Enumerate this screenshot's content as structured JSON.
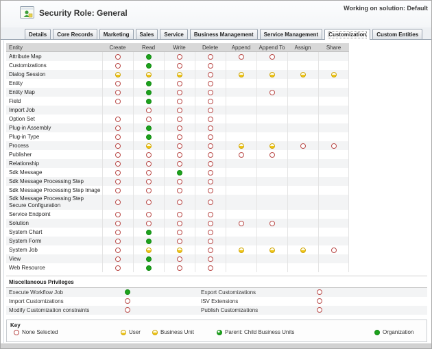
{
  "window": {
    "title": "Security Role: General",
    "working_on": "Working on solution: Default"
  },
  "tabs": [
    {
      "label": "Details",
      "selected": false
    },
    {
      "label": "Core Records",
      "selected": false
    },
    {
      "label": "Marketing",
      "selected": false
    },
    {
      "label": "Sales",
      "selected": false
    },
    {
      "label": "Service",
      "selected": false
    },
    {
      "label": "Business Management",
      "selected": false
    },
    {
      "label": "Service Management",
      "selected": false
    },
    {
      "label": "Customization",
      "selected": true
    },
    {
      "label": "Custom Entities",
      "selected": false
    }
  ],
  "grid": {
    "columns": [
      "Entity",
      "Create",
      "Read",
      "Write",
      "Delete",
      "Append",
      "Append To",
      "Assign",
      "Share"
    ],
    "rows": [
      {
        "entity": "Attribute Map",
        "cells": [
          "none",
          "org",
          "none",
          "none",
          "none",
          "none",
          "",
          ""
        ]
      },
      {
        "entity": "Customizations",
        "cells": [
          "none",
          "org",
          "none",
          "none",
          "",
          "",
          "",
          ""
        ]
      },
      {
        "entity": "Dialog Session",
        "cells": [
          "bu",
          "bu",
          "bu",
          "none",
          "bu",
          "bu",
          "bu",
          "bu"
        ]
      },
      {
        "entity": "Entity",
        "cells": [
          "none",
          "org",
          "none",
          "none",
          "",
          "",
          "",
          ""
        ]
      },
      {
        "entity": "Entity Map",
        "cells": [
          "none",
          "org",
          "none",
          "none",
          "",
          "none",
          "",
          ""
        ]
      },
      {
        "entity": "Field",
        "cells": [
          "none",
          "org",
          "none",
          "none",
          "",
          "",
          "",
          ""
        ]
      },
      {
        "entity": "Import Job",
        "cells": [
          "",
          "none",
          "none",
          "none",
          "",
          "",
          "",
          ""
        ]
      },
      {
        "entity": "Option Set",
        "cells": [
          "none",
          "none",
          "none",
          "none",
          "",
          "",
          "",
          ""
        ]
      },
      {
        "entity": "Plug-in Assembly",
        "cells": [
          "none",
          "org",
          "none",
          "none",
          "",
          "",
          "",
          ""
        ]
      },
      {
        "entity": "Plug-in Type",
        "cells": [
          "none",
          "org",
          "none",
          "none",
          "",
          "",
          "",
          ""
        ]
      },
      {
        "entity": "Process",
        "cells": [
          "none",
          "bu",
          "none",
          "none",
          "bu",
          "bu",
          "none",
          "none"
        ]
      },
      {
        "entity": "Publisher",
        "cells": [
          "none",
          "none",
          "none",
          "none",
          "none",
          "none",
          "",
          ""
        ]
      },
      {
        "entity": "Relationship",
        "cells": [
          "none",
          "none",
          "none",
          "none",
          "",
          "",
          "",
          ""
        ]
      },
      {
        "entity": "Sdk Message",
        "cells": [
          "none",
          "none",
          "org",
          "none",
          "",
          "",
          "",
          ""
        ]
      },
      {
        "entity": "Sdk Message Processing Step",
        "cells": [
          "none",
          "none",
          "none",
          "none",
          "",
          "",
          "",
          ""
        ]
      },
      {
        "entity": "Sdk Message Processing Step Image",
        "cells": [
          "none",
          "none",
          "none",
          "none",
          "",
          "",
          "",
          ""
        ]
      },
      {
        "entity": "Sdk Message Processing Step Secure Configuration",
        "cells": [
          "none",
          "none",
          "none",
          "none",
          "",
          "",
          "",
          ""
        ]
      },
      {
        "entity": "Service Endpoint",
        "cells": [
          "none",
          "none",
          "none",
          "none",
          "",
          "",
          "",
          ""
        ]
      },
      {
        "entity": "Solution",
        "cells": [
          "none",
          "none",
          "none",
          "none",
          "none",
          "none",
          "",
          ""
        ]
      },
      {
        "entity": "System Chart",
        "cells": [
          "none",
          "org",
          "none",
          "none",
          "",
          "",
          "",
          ""
        ]
      },
      {
        "entity": "System Form",
        "cells": [
          "none",
          "org",
          "none",
          "none",
          "",
          "",
          "",
          ""
        ]
      },
      {
        "entity": "System Job",
        "cells": [
          "none",
          "bu",
          "bu",
          "none",
          "bu",
          "bu",
          "bu",
          "none"
        ]
      },
      {
        "entity": "View",
        "cells": [
          "none",
          "org",
          "none",
          "none",
          "",
          "",
          "",
          ""
        ]
      },
      {
        "entity": "Web Resource",
        "cells": [
          "none",
          "org",
          "none",
          "none",
          "",
          "",
          "",
          ""
        ]
      }
    ]
  },
  "misc": {
    "title": "Miscellaneous Privileges",
    "left": [
      {
        "label": "Execute Workflow Job",
        "level": "org"
      },
      {
        "label": "Import Customizations",
        "level": "none"
      },
      {
        "label": "Modify Customization constraints",
        "level": "none"
      }
    ],
    "right": [
      {
        "label": "Export Customizations",
        "level": "none"
      },
      {
        "label": "ISV Extensions",
        "level": "none"
      },
      {
        "label": "Publish Customizations",
        "level": "none"
      }
    ]
  },
  "key": {
    "title": "Key",
    "items": [
      {
        "label": "None Selected",
        "level": "none"
      },
      {
        "label": "User",
        "level": "user"
      },
      {
        "label": "Business Unit",
        "level": "bu"
      },
      {
        "label": "Parent: Child Business Units",
        "level": "parent"
      },
      {
        "label": "Organization",
        "level": "org"
      }
    ]
  },
  "icons": {
    "app_icon": "security-role-icon"
  },
  "colors": {
    "none_selected": "#b94a48",
    "user_business_unit": "#f0c515",
    "organization": "#1da21d",
    "header_bg": "#d8d8d8"
  }
}
